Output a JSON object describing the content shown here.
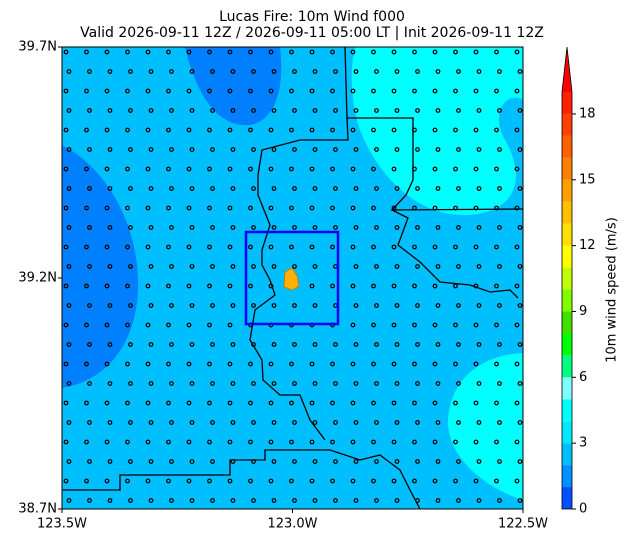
{
  "title": [
    "Lucas Fire: 10m Wind f000",
    "Valid 2026-09-11 12Z / 2026-09-11 05:00 LT | Init 2026-09-11 12Z"
  ],
  "map": {
    "xlim": [
      -123.5,
      -122.5
    ],
    "ylim": [
      38.7,
      39.7
    ],
    "xticks": [
      {
        "value": -123.5,
        "label": "123.5W"
      },
      {
        "value": -123.0,
        "label": "123.0W"
      },
      {
        "value": -122.5,
        "label": "122.5W"
      }
    ],
    "yticks": [
      {
        "value": 38.7,
        "label": "38.7N"
      },
      {
        "value": 39.2,
        "label": "39.2N"
      },
      {
        "value": 39.7,
        "label": "39.7N"
      }
    ],
    "box_color": "#0000ff"
  },
  "colorbar": {
    "label": "10m wind speed (m/s)",
    "lim": [
      0,
      19
    ],
    "ticks": [
      0,
      3,
      6,
      9,
      12,
      15,
      18
    ],
    "colors": [
      "#0050ff",
      "#0090ff",
      "#00c0ff",
      "#00e8ff",
      "#00ffff",
      "#80ffff",
      "#00ff80",
      "#00ff00",
      "#40e000",
      "#80ff00",
      "#c0ff00",
      "#ffff00",
      "#ffe000",
      "#ffc000",
      "#ffa000",
      "#ff8000",
      "#ff6000",
      "#ff4000",
      "#ff2000"
    ],
    "extend_color": "#ff0000"
  }
}
